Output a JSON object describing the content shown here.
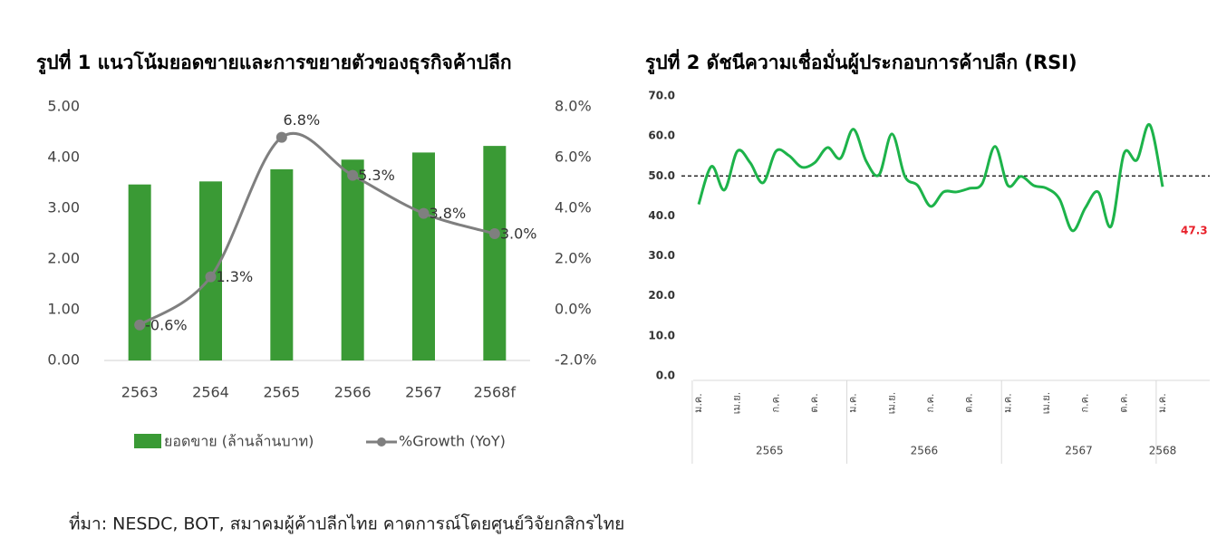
{
  "chart_data": [
    {
      "type": "bar",
      "title": "รูปที่ 1 แนวโน้มยอดขายและการขยายตัวของธุรกิจค้าปลีก",
      "categories": [
        "2563",
        "2564",
        "2565",
        "2566",
        "2567",
        "2568f"
      ],
      "series": [
        {
          "name": "ยอดขาย (ล้านล้านบาท)",
          "type": "bar",
          "color": "#3a9a35",
          "values": [
            3.47,
            3.53,
            3.77,
            3.96,
            4.1,
            4.23
          ]
        },
        {
          "name": "%Growth (YoY)",
          "type": "line",
          "axis": "y2",
          "color": "#7f7f7f",
          "values": [
            -0.6,
            1.3,
            6.8,
            5.3,
            3.8,
            3.0
          ],
          "value_labels": [
            "-0.6%",
            "1.3%",
            "6.8%",
            "5.3%",
            "3.8%",
            "3.0%"
          ]
        }
      ],
      "ylim": [
        0,
        5
      ],
      "yticks": [
        {
          "value": 0,
          "label": "0.00"
        },
        {
          "value": 1,
          "label": "1.00"
        },
        {
          "value": 2,
          "label": "2.00"
        },
        {
          "value": 3,
          "label": "3.00"
        },
        {
          "value": 4,
          "label": "4.00"
        },
        {
          "value": 5,
          "label": "5.00"
        }
      ],
      "y2lim": [
        -2,
        8
      ],
      "y2ticks": [
        {
          "value": -2,
          "label": "-2.0%"
        },
        {
          "value": 0,
          "label": "0.0%"
        },
        {
          "value": 2,
          "label": "2.0%"
        },
        {
          "value": 4,
          "label": "4.0%"
        },
        {
          "value": 6,
          "label": "6.0%"
        },
        {
          "value": 8,
          "label": "8.0%"
        }
      ],
      "legend": "bottom"
    },
    {
      "type": "line",
      "title": "รูปที่ 2 ดัชนีความเชื่อมั่นผู้ประกอบการค้าปลีก (RSI)",
      "categories": [
        "ม.ค.",
        null,
        null,
        "เม.ย.",
        null,
        null,
        "ก.ค.",
        null,
        null,
        "ต.ค.",
        null,
        null,
        "ม.ค.",
        null,
        null,
        "เม.ย.",
        null,
        null,
        "ก.ค.",
        null,
        null,
        "ต.ค.",
        null,
        null,
        "ม.ค.",
        null,
        null,
        "เม.ย.",
        null,
        null,
        "ก.ค.",
        null,
        null,
        "ต.ค.",
        null,
        null,
        "ม.ค."
      ],
      "year_groups": [
        "2565",
        "2566",
        "2567",
        "2568"
      ],
      "values": [
        42.9,
        52.4,
        46.5,
        56.2,
        53.3,
        48.3,
        56.2,
        55.1,
        52.2,
        53.3,
        57.1,
        54.4,
        61.7,
        53.7,
        50.3,
        60.5,
        49.9,
        47.6,
        42.4,
        46.0,
        46.0,
        46.9,
        48.1,
        57.4,
        47.6,
        49.9,
        47.6,
        46.9,
        44.2,
        36.3,
        42.0,
        46.0,
        37.4,
        55.6,
        54.0,
        62.8,
        47.3
      ],
      "color": "#1db34a",
      "ylim": [
        0,
        70
      ],
      "yticks": [
        {
          "value": 0,
          "label": "0.0"
        },
        {
          "value": 10,
          "label": "10.0"
        },
        {
          "value": 20,
          "label": "20.0"
        },
        {
          "value": 30,
          "label": "30.0"
        },
        {
          "value": 40,
          "label": "40.0"
        },
        {
          "value": 50,
          "label": "50.0"
        },
        {
          "value": 60,
          "label": "60.0"
        },
        {
          "value": 70,
          "label": "70.0"
        }
      ],
      "reference_line": 50,
      "label_last": true
    }
  ],
  "source": "ที่มา: NESDC, BOT, สมาคมผู้ค้าปลีกไทย คาดการณ์โดยศูนย์วิจัยกสิกรไทย"
}
